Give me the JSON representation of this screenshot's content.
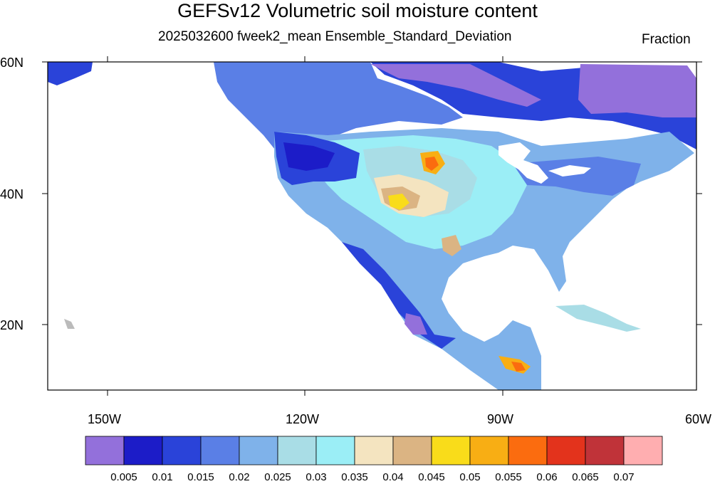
{
  "header": {
    "title": "GEFSv12 Volumetric soil moisture content",
    "subtitle": "2025032600 fweek2_mean Ensemble_Standard_Deviation",
    "units": "Fraction"
  },
  "map": {
    "lat_labels": [
      "60N",
      "40N",
      "20N"
    ],
    "lon_labels": [
      "150W",
      "120W",
      "90W",
      "60W"
    ],
    "domain": {
      "lon_min": -159,
      "lon_max": -60,
      "lat_min": 10,
      "lat_max": 60
    }
  },
  "colorbar": {
    "labels": [
      "0.005",
      "0.01",
      "0.015",
      "0.02",
      "0.025",
      "0.03",
      "0.035",
      "0.04",
      "0.045",
      "0.05",
      "0.055",
      "0.06",
      "0.065",
      "0.07"
    ],
    "colors": [
      "#9370db",
      "#1c1cc8",
      "#2a43d9",
      "#5a7fe6",
      "#7fb2ea",
      "#a9dde6",
      "#9beef6",
      "#f4e4c0",
      "#dbb483",
      "#f9dc1a",
      "#f8ae14",
      "#fb6c0f",
      "#e3331c",
      "#c03339",
      "#ffaeb0"
    ]
  }
}
